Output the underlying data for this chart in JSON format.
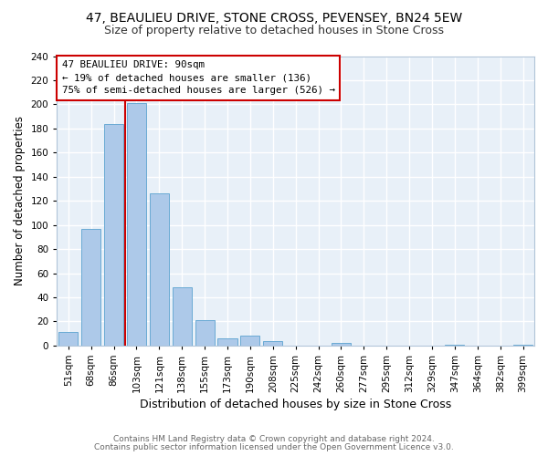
{
  "title1": "47, BEAULIEU DRIVE, STONE CROSS, PEVENSEY, BN24 5EW",
  "title2": "Size of property relative to detached houses in Stone Cross",
  "xlabel": "Distribution of detached houses by size in Stone Cross",
  "ylabel": "Number of detached properties",
  "bar_labels": [
    "51sqm",
    "68sqm",
    "86sqm",
    "103sqm",
    "121sqm",
    "138sqm",
    "155sqm",
    "173sqm",
    "190sqm",
    "208sqm",
    "225sqm",
    "242sqm",
    "260sqm",
    "277sqm",
    "295sqm",
    "312sqm",
    "329sqm",
    "347sqm",
    "364sqm",
    "382sqm",
    "399sqm"
  ],
  "bar_values": [
    11,
    97,
    184,
    201,
    126,
    48,
    21,
    6,
    8,
    4,
    0,
    0,
    2,
    0,
    0,
    0,
    0,
    1,
    0,
    0,
    1
  ],
  "bar_color": "#adc9e9",
  "bar_edge_color": "#6aaad4",
  "red_line_x": 2,
  "annotation_line1": "47 BEAULIEU DRIVE: 90sqm",
  "annotation_line2": "← 19% of detached houses are smaller (136)",
  "annotation_line3": "75% of semi-detached houses are larger (526) →",
  "annotation_box_color": "#ffffff",
  "annotation_box_edge_color": "#cc0000",
  "ylim": [
    0,
    240
  ],
  "yticks": [
    0,
    20,
    40,
    60,
    80,
    100,
    120,
    140,
    160,
    180,
    200,
    220,
    240
  ],
  "footer1": "Contains HM Land Registry data © Crown copyright and database right 2024.",
  "footer2": "Contains public sector information licensed under the Open Government Licence v3.0.",
  "background_color": "#ffffff",
  "plot_bg_color": "#e8f0f8",
  "grid_color": "#ffffff",
  "title1_fontsize": 10,
  "title2_fontsize": 9,
  "xlabel_fontsize": 9,
  "ylabel_fontsize": 8.5,
  "tick_fontsize": 7.5,
  "footer_fontsize": 6.5
}
